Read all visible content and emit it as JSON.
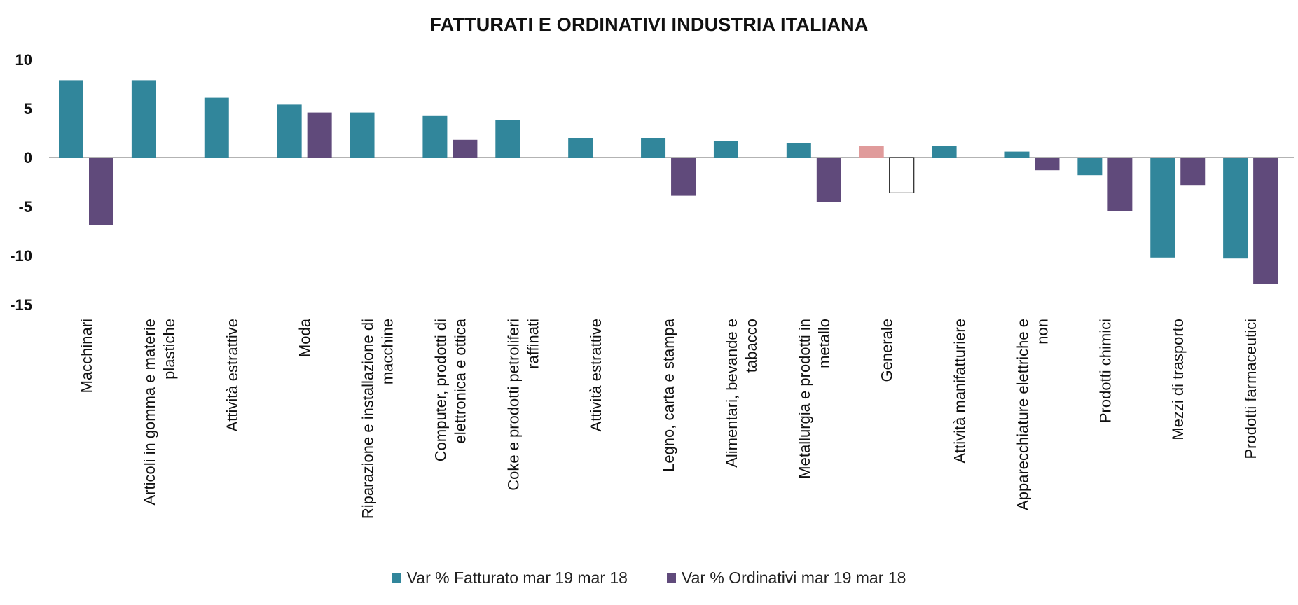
{
  "chart_data": {
    "type": "bar",
    "title": "FATTURATI E ORDINATIVI INDUSTRIA ITALIANA",
    "xlabel": "",
    "ylabel": "",
    "ylim": [
      -15,
      10
    ],
    "yticks": [
      10,
      5,
      0,
      -5,
      -10,
      -15
    ],
    "grid": false,
    "legend_position": "bottom",
    "categories": [
      [
        "Macchinari"
      ],
      [
        "Articoli in gomma e materie",
        "plastiche"
      ],
      [
        "Attività estrattive"
      ],
      [
        "Moda"
      ],
      [
        "Riparazione e installazione di",
        "macchine"
      ],
      [
        "Computer, prodotti di",
        "elettronica e ottica"
      ],
      [
        "Coke e prodotti petroliferi",
        "raffinati"
      ],
      [
        "Attività estrattive"
      ],
      [
        "Legno, carta e stampa"
      ],
      [
        "Alimentari, bevande e",
        "tabacco"
      ],
      [
        "Metallurgia e prodotti in",
        "metallo"
      ],
      [
        "Generale"
      ],
      [
        "Attività manifatturiere"
      ],
      [
        "Apparecchiature elettriche e",
        "non"
      ],
      [
        "Prodotti chimici"
      ],
      [
        "Mezzi di trasporto"
      ],
      [
        "Prodotti farmaceutici"
      ]
    ],
    "series": [
      {
        "name": "Var % Fatturato mar 19 mar 18",
        "color": "#31869b",
        "values": [
          7.9,
          7.9,
          6.1,
          5.4,
          4.6,
          4.3,
          3.8,
          2.0,
          2.0,
          1.7,
          1.5,
          1.2,
          1.2,
          0.6,
          -1.8,
          -10.2,
          -10.3
        ],
        "highlight": {
          "11": "#e09b9b"
        }
      },
      {
        "name": "Var % Ordinativi mar 19 mar 18",
        "color": "#604a7b",
        "values": [
          -6.9,
          null,
          null,
          4.6,
          null,
          1.8,
          null,
          null,
          -3.9,
          null,
          -4.5,
          -3.6,
          null,
          -1.3,
          -5.5,
          -2.8,
          -12.9
        ],
        "highlight": {
          "11": "outline"
        }
      }
    ]
  }
}
